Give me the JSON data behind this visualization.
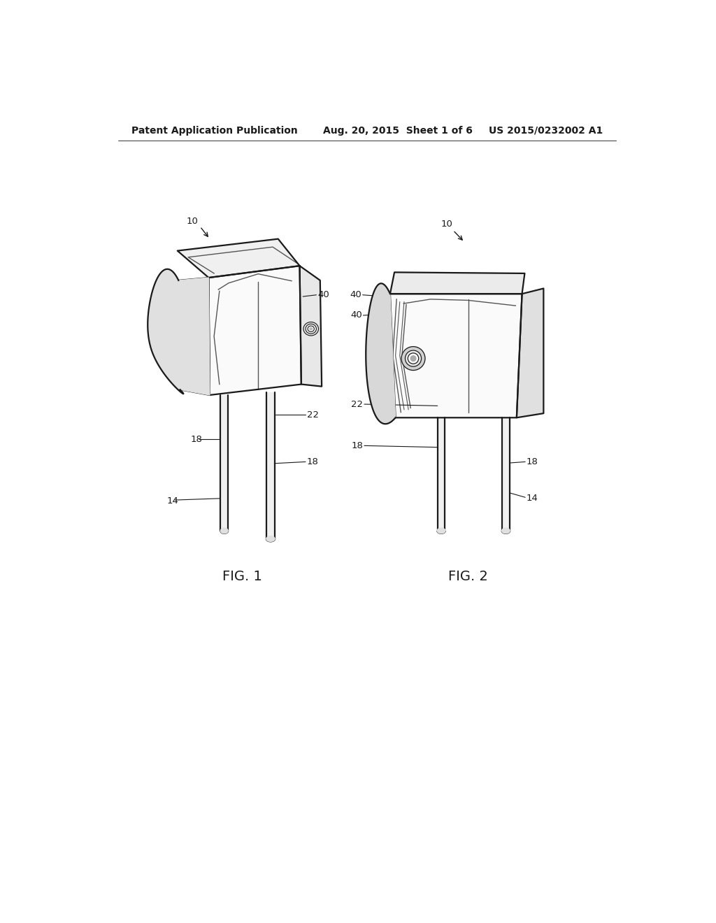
{
  "background_color": "#ffffff",
  "line_color": "#1a1a1a",
  "header_left": "Patent Application Publication",
  "header_center": "Aug. 20, 2015  Sheet 1 of 6",
  "header_right": "US 2015/0232002 A1",
  "fig1_label": "FIG. 1",
  "fig2_label": "FIG. 2",
  "title_fontsize": 10,
  "label_fontsize": 9.5
}
